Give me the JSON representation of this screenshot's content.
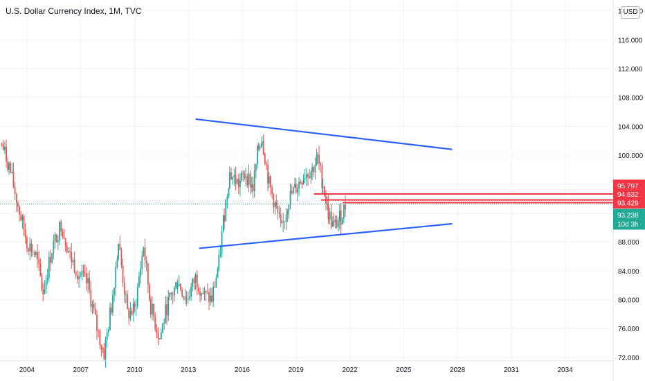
{
  "chart_data": {
    "type": "candlestick",
    "title": "U.S. Dollar Currency Index, 1M, TVC",
    "currency": "USD",
    "x_ticks": [
      "2004",
      "2007",
      "2010",
      "2013",
      "2016",
      "2019",
      "2022",
      "2025",
      "2028",
      "2031",
      "2034"
    ],
    "x_range": [
      2002.5,
      2036.6
    ],
    "y_ticks": [
      "72.000",
      "76.000",
      "80.000",
      "84.000",
      "88.000",
      "92.000",
      "96.000",
      "100.000",
      "104.000",
      "108.000",
      "112.000",
      "116.000",
      "120.000"
    ],
    "y_range": [
      71.5,
      121.5
    ],
    "colors": {
      "up": "#26a69a",
      "down": "#ef5350",
      "trendline": "#2962ff",
      "level": "#f23645",
      "last": "#22ab94"
    },
    "series": [
      {
        "name": "price",
        "points": [
          [
            2002.6,
            101.5
          ],
          [
            2003.0,
            98.5
          ],
          [
            2003.5,
            93.0
          ],
          [
            2004.0,
            88.0
          ],
          [
            2004.5,
            86.0
          ],
          [
            2004.9,
            81.0
          ],
          [
            2005.4,
            87.0
          ],
          [
            2005.9,
            90.5
          ],
          [
            2006.4,
            86.0
          ],
          [
            2006.9,
            83.5
          ],
          [
            2007.4,
            82.0
          ],
          [
            2007.9,
            76.0
          ],
          [
            2008.3,
            72.5
          ],
          [
            2008.7,
            79.0
          ],
          [
            2009.1,
            88.0
          ],
          [
            2009.6,
            78.0
          ],
          [
            2010.0,
            78.5
          ],
          [
            2010.5,
            87.5
          ],
          [
            2010.9,
            79.0
          ],
          [
            2011.4,
            74.5
          ],
          [
            2011.8,
            79.0
          ],
          [
            2012.4,
            82.5
          ],
          [
            2012.9,
            80.0
          ],
          [
            2013.4,
            83.0
          ],
          [
            2013.9,
            80.5
          ],
          [
            2014.3,
            80.0
          ],
          [
            2014.7,
            85.0
          ],
          [
            2015.0,
            92.0
          ],
          [
            2015.3,
            97.5
          ],
          [
            2015.8,
            96.0
          ],
          [
            2016.2,
            97.5
          ],
          [
            2016.6,
            95.5
          ],
          [
            2016.9,
            101.0
          ],
          [
            2017.1,
            102.5
          ],
          [
            2017.5,
            96.0
          ],
          [
            2017.9,
            92.5
          ],
          [
            2018.2,
            89.5
          ],
          [
            2018.6,
            94.0
          ],
          [
            2019.0,
            95.5
          ],
          [
            2019.5,
            97.5
          ],
          [
            2019.9,
            98.0
          ],
          [
            2020.2,
            99.5
          ],
          [
            2020.5,
            96.0
          ],
          [
            2020.8,
            92.0
          ],
          [
            2021.1,
            90.0
          ],
          [
            2021.5,
            91.5
          ],
          [
            2021.8,
            93.238
          ]
        ]
      }
    ],
    "trendlines": [
      {
        "from": [
          2013.4,
          105.0
        ],
        "to": [
          2027.7,
          100.8
        ]
      },
      {
        "from": [
          2013.6,
          87.1
        ],
        "to": [
          2027.7,
          90.5
        ]
      }
    ],
    "levels": [
      {
        "from": 2020.0,
        "value": 94.632
      },
      {
        "from": 2020.4,
        "value": 93.8
      },
      {
        "from": 2021.6,
        "value": 93.429
      }
    ],
    "price_labels": [
      {
        "value": 95.797,
        "text": "95.797",
        "color": "#f23645"
      },
      {
        "value": 94.632,
        "text": "94.632",
        "color": "#f23645"
      },
      {
        "value": 93.429,
        "text": "93.429",
        "color": "#f23645"
      },
      {
        "value": 93.238,
        "text": "93.238",
        "subtext": "10d 3h",
        "color": "#22ab94"
      }
    ]
  }
}
